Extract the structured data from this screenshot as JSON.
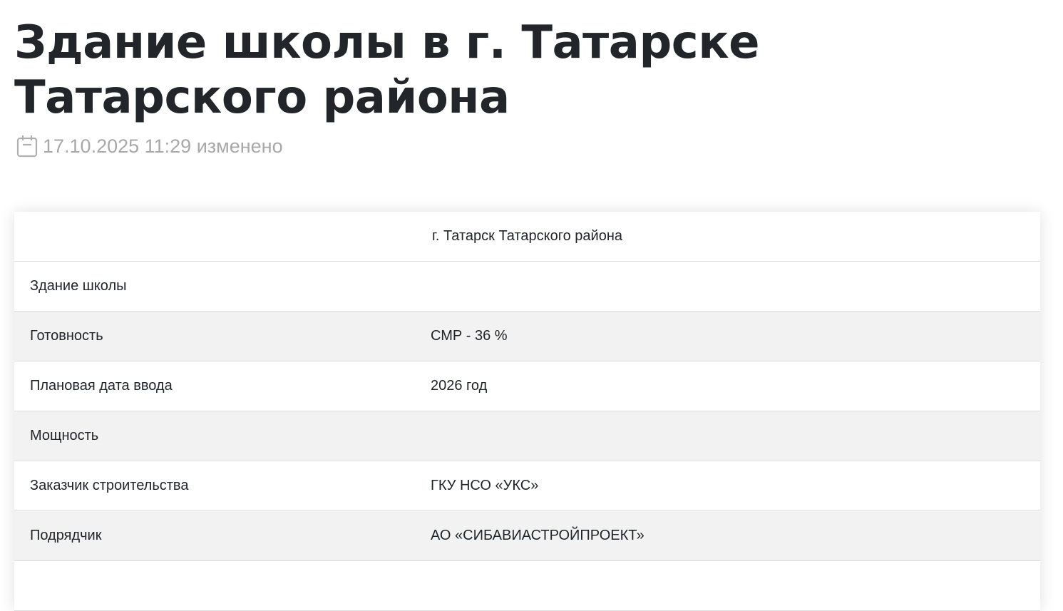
{
  "title": "Здание школы в г. Татарске Татарского района",
  "meta": {
    "icon": "calendar-icon",
    "date": "17.10.2025 11:29 изменено"
  },
  "table": {
    "header": "г. Татарск Татарского района",
    "rows": [
      {
        "label": "Здание школы",
        "value": ""
      },
      {
        "label": "Готовность",
        "value": "СМР - 36 %"
      },
      {
        "label": "Плановая дата ввода",
        "value": "2026 год"
      },
      {
        "label": "Мощность",
        "value": ""
      },
      {
        "label": "Заказчик строительства",
        "value": "ГКУ НСО «УКС»"
      },
      {
        "label": "Подрядчик",
        "value": "АО «СИБАВИАСТРОЙПРОЕКТ»"
      },
      {
        "label": "",
        "value": ""
      }
    ]
  }
}
